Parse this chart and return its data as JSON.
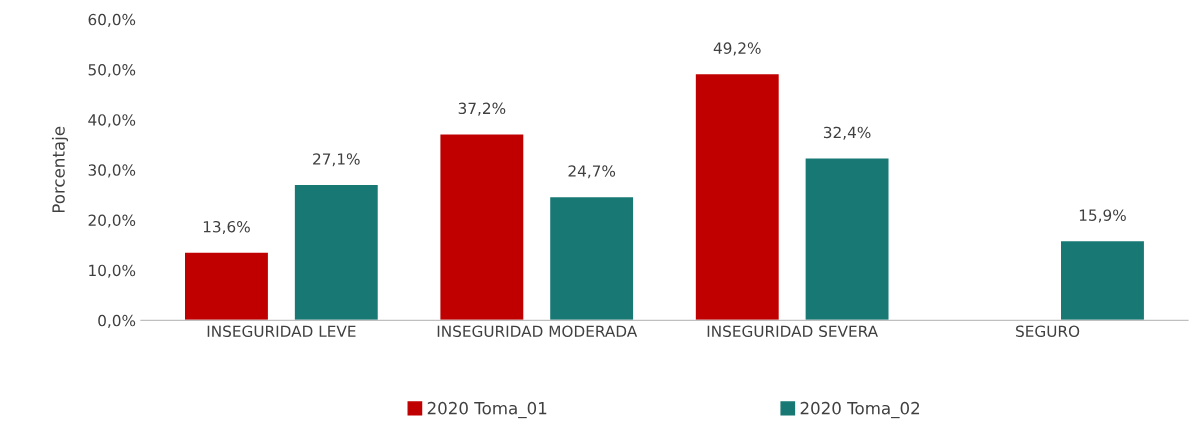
{
  "chart_data": {
    "type": "bar",
    "ylabel": "Porcentaje",
    "categories": [
      "INSEGURIDAD LEVE",
      "INSEGURIDAD MODERADA",
      "INSEGURIDAD SEVERA",
      "SEGURO"
    ],
    "series": [
      {
        "name": "2020 Toma_01",
        "color": "#c00000",
        "values": [
          13.6,
          37.2,
          49.2,
          null
        ],
        "value_labels": [
          "13,6%",
          "37,2%",
          "49,2%",
          null
        ]
      },
      {
        "name": "2020 Toma_02",
        "color": "#177874",
        "values": [
          27.1,
          24.7,
          32.4,
          15.9
        ],
        "value_labels": [
          "27,1%",
          "24,7%",
          "32,4%",
          "15,9%"
        ]
      }
    ],
    "ylim": [
      0,
      60
    ],
    "yticks": [
      {
        "value": 0,
        "label": "0,0%"
      },
      {
        "value": 10,
        "label": "10,0%"
      },
      {
        "value": 20,
        "label": "20,0%"
      },
      {
        "value": 30,
        "label": "30,0%"
      },
      {
        "value": 40,
        "label": "40,0%"
      },
      {
        "value": 50,
        "label": "50,0%"
      },
      {
        "value": 60,
        "label": "60,0%"
      }
    ],
    "grid": false,
    "legend": "bottom"
  }
}
